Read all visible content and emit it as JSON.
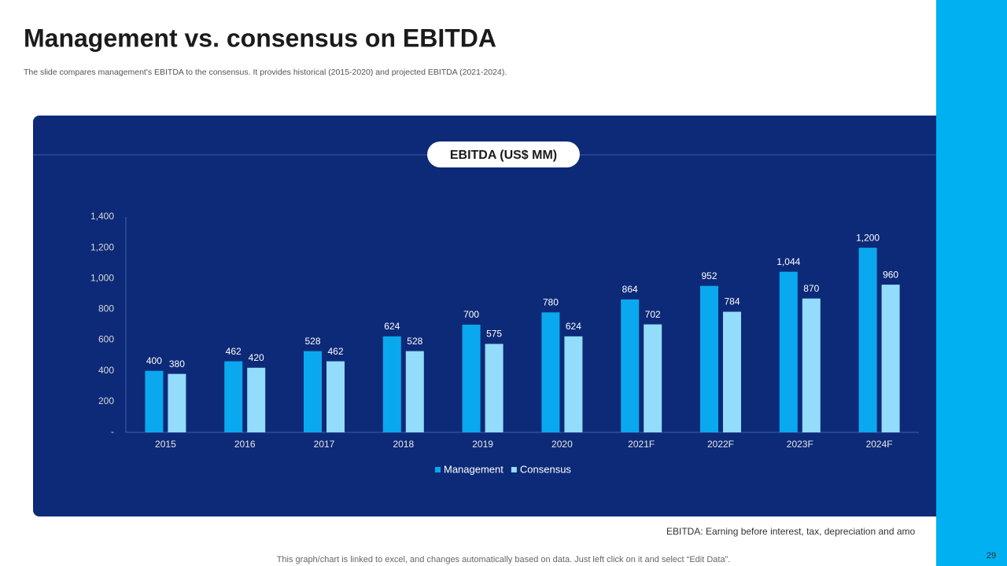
{
  "slide": {
    "title": "Management vs. consensus on EBITDA",
    "subtitle": "The slide compares management's EBITDA to the consensus. It provides historical (2015-2020) and projected EBITDA (2021-2024).",
    "footnote": "EBITDA: Earning before interest, tax, depreciation and amo",
    "note": "This graph/chart is linked to excel, and changes automatically based on data. Just left click on it and select “Edit Data”.",
    "page_number": "29"
  },
  "chart_data": {
    "type": "bar",
    "title": "EBITDA (US$ MM)",
    "categories": [
      "2015",
      "2016",
      "2017",
      "2018",
      "2019",
      "2020",
      "2021F",
      "2022F",
      "2023F",
      "2024F"
    ],
    "series": [
      {
        "name": "Management",
        "color": "#0aa8ee",
        "values": [
          400,
          462,
          528,
          624,
          700,
          780,
          864,
          952,
          1044,
          1200
        ],
        "value_labels": [
          "400",
          "462",
          "528",
          "624",
          "700",
          "780",
          "864",
          "952",
          "1,044",
          "1,200"
        ]
      },
      {
        "name": "Consensus",
        "color": "#93dcfb",
        "values": [
          380,
          420,
          462,
          528,
          575,
          624,
          702,
          784,
          870,
          960
        ],
        "value_labels": [
          "380",
          "420",
          "462",
          "528",
          "575",
          "624",
          "702",
          "784",
          "870",
          "960"
        ]
      }
    ],
    "ylim": [
      0,
      1400
    ],
    "yticks": [
      {
        "value": 0,
        "label": "-"
      },
      200,
      400,
      600,
      800,
      {
        "value": 1000,
        "label": "1,000"
      },
      {
        "value": 1200,
        "label": "1,200"
      },
      {
        "value": 1400,
        "label": "1,400"
      }
    ],
    "grid": false,
    "legend": "bottom"
  }
}
